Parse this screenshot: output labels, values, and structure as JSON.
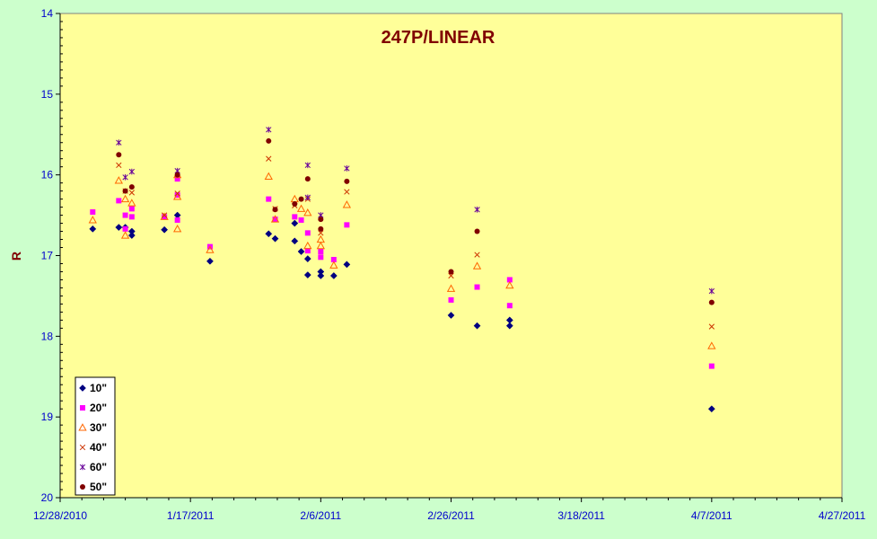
{
  "chart_data": {
    "type": "scatter",
    "title": "247P/LINEAR",
    "xlabel": "",
    "ylabel": "R",
    "x_axis": {
      "type": "date",
      "min": "12/28/2010",
      "max": "4/27/2011",
      "tick_labels": [
        "12/28/2010",
        "1/17/2011",
        "2/6/2011",
        "2/26/2011",
        "3/18/2011",
        "4/7/2011",
        "4/27/2011"
      ]
    },
    "y_axis": {
      "min": 14,
      "max": 20,
      "reversed": true,
      "tick_labels": [
        "14",
        "15",
        "16",
        "17",
        "18",
        "19",
        "20"
      ]
    },
    "grid": false,
    "legend_position": "bottom-left",
    "colors": {
      "page_background": "#ccffcc",
      "plot_background": "#ffff99",
      "axis_text": "#0000cc",
      "title_text": "#800000"
    },
    "series": [
      {
        "name": "10\"",
        "marker": "diamond",
        "color": "#000080",
        "points": [
          [
            "1/2/2011",
            16.67
          ],
          [
            "1/6/2011",
            16.65
          ],
          [
            "1/7/2011",
            16.65
          ],
          [
            "1/8/2011",
            16.7
          ],
          [
            "1/8/2011",
            16.75
          ],
          [
            "1/13/2011",
            16.68
          ],
          [
            "1/15/2011",
            16.5
          ],
          [
            "1/20/2011",
            17.07
          ],
          [
            "1/29/2011",
            16.73
          ],
          [
            "1/30/2011",
            16.79
          ],
          [
            "2/2/2011",
            16.6
          ],
          [
            "2/2/2011",
            16.82
          ],
          [
            "2/3/2011",
            16.95
          ],
          [
            "2/4/2011",
            17.04
          ],
          [
            "2/4/2011",
            17.24
          ],
          [
            "2/6/2011",
            17.2
          ],
          [
            "2/6/2011",
            17.25
          ],
          [
            "2/8/2011",
            17.25
          ],
          [
            "2/10/2011",
            17.11
          ],
          [
            "2/26/2011",
            17.74
          ],
          [
            "3/2/2011",
            17.87
          ],
          [
            "3/7/2011",
            17.8
          ],
          [
            "3/7/2011",
            17.87
          ],
          [
            "4/7/2011",
            18.9
          ]
        ]
      },
      {
        "name": "20\"",
        "marker": "square",
        "color": "#ff00ff",
        "points": [
          [
            "1/2/2011",
            16.46
          ],
          [
            "1/6/2011",
            16.32
          ],
          [
            "1/7/2011",
            16.5
          ],
          [
            "1/7/2011",
            16.67
          ],
          [
            "1/8/2011",
            16.42
          ],
          [
            "1/8/2011",
            16.52
          ],
          [
            "1/13/2011",
            16.52
          ],
          [
            "1/15/2011",
            16.05
          ],
          [
            "1/15/2011",
            16.25
          ],
          [
            "1/15/2011",
            16.56
          ],
          [
            "1/20/2011",
            16.89
          ],
          [
            "1/29/2011",
            16.3
          ],
          [
            "1/30/2011",
            16.55
          ],
          [
            "2/2/2011",
            16.52
          ],
          [
            "2/3/2011",
            16.56
          ],
          [
            "2/4/2011",
            16.72
          ],
          [
            "2/4/2011",
            16.94
          ],
          [
            "2/6/2011",
            16.95
          ],
          [
            "2/6/2011",
            17.02
          ],
          [
            "2/8/2011",
            17.05
          ],
          [
            "2/10/2011",
            16.62
          ],
          [
            "2/26/2011",
            17.55
          ],
          [
            "3/2/2011",
            17.39
          ],
          [
            "3/7/2011",
            17.3
          ],
          [
            "3/7/2011",
            17.62
          ],
          [
            "4/7/2011",
            18.37
          ]
        ]
      },
      {
        "name": "30\"",
        "marker": "triangle",
        "color": "#ff6600",
        "points": [
          [
            "1/2/2011",
            16.56
          ],
          [
            "1/6/2011",
            16.07
          ],
          [
            "1/7/2011",
            16.3
          ],
          [
            "1/7/2011",
            16.75
          ],
          [
            "1/8/2011",
            16.35
          ],
          [
            "1/13/2011",
            16.52
          ],
          [
            "1/15/2011",
            16.0
          ],
          [
            "1/15/2011",
            16.27
          ],
          [
            "1/15/2011",
            16.67
          ],
          [
            "1/20/2011",
            16.93
          ],
          [
            "1/29/2011",
            16.02
          ],
          [
            "1/30/2011",
            16.55
          ],
          [
            "2/2/2011",
            16.3
          ],
          [
            "2/3/2011",
            16.42
          ],
          [
            "2/4/2011",
            16.47
          ],
          [
            "2/4/2011",
            16.88
          ],
          [
            "2/6/2011",
            16.8
          ],
          [
            "2/6/2011",
            16.88
          ],
          [
            "2/8/2011",
            17.12
          ],
          [
            "2/10/2011",
            16.37
          ],
          [
            "2/26/2011",
            17.41
          ],
          [
            "3/2/2011",
            17.13
          ],
          [
            "3/7/2011",
            17.37
          ],
          [
            "4/7/2011",
            18.12
          ]
        ]
      },
      {
        "name": "40\"",
        "marker": "x",
        "color": "#cc3300",
        "points": [
          [
            "1/6/2011",
            15.88
          ],
          [
            "1/7/2011",
            16.2
          ],
          [
            "1/8/2011",
            16.22
          ],
          [
            "1/13/2011",
            16.5
          ],
          [
            "1/15/2011",
            16.23
          ],
          [
            "1/29/2011",
            15.8
          ],
          [
            "1/30/2011",
            16.42
          ],
          [
            "2/2/2011",
            16.38
          ],
          [
            "2/4/2011",
            16.3
          ],
          [
            "2/6/2011",
            16.72
          ],
          [
            "2/10/2011",
            16.21
          ],
          [
            "2/26/2011",
            17.25
          ],
          [
            "3/2/2011",
            16.99
          ],
          [
            "4/7/2011",
            17.88
          ]
        ]
      },
      {
        "name": "60\"",
        "marker": "star",
        "color": "#660099",
        "points": [
          [
            "1/6/2011",
            15.6
          ],
          [
            "1/7/2011",
            16.03
          ],
          [
            "1/8/2011",
            15.96
          ],
          [
            "1/15/2011",
            15.95
          ],
          [
            "1/29/2011",
            15.44
          ],
          [
            "2/4/2011",
            15.88
          ],
          [
            "2/4/2011",
            16.28
          ],
          [
            "2/6/2011",
            16.5
          ],
          [
            "2/10/2011",
            15.92
          ],
          [
            "3/2/2011",
            16.43
          ],
          [
            "4/7/2011",
            17.44
          ]
        ]
      },
      {
        "name": "50\"",
        "marker": "circle",
        "color": "#800000",
        "points": [
          [
            "1/6/2011",
            15.75
          ],
          [
            "1/7/2011",
            16.2
          ],
          [
            "1/8/2011",
            16.15
          ],
          [
            "1/15/2011",
            16.0
          ],
          [
            "1/29/2011",
            15.58
          ],
          [
            "1/30/2011",
            16.43
          ],
          [
            "2/2/2011",
            16.36
          ],
          [
            "2/3/2011",
            16.3
          ],
          [
            "2/4/2011",
            16.05
          ],
          [
            "2/6/2011",
            16.55
          ],
          [
            "2/6/2011",
            16.67
          ],
          [
            "2/10/2011",
            16.08
          ],
          [
            "2/26/2011",
            17.2
          ],
          [
            "3/2/2011",
            16.7
          ],
          [
            "4/7/2011",
            17.58
          ]
        ]
      }
    ]
  }
}
